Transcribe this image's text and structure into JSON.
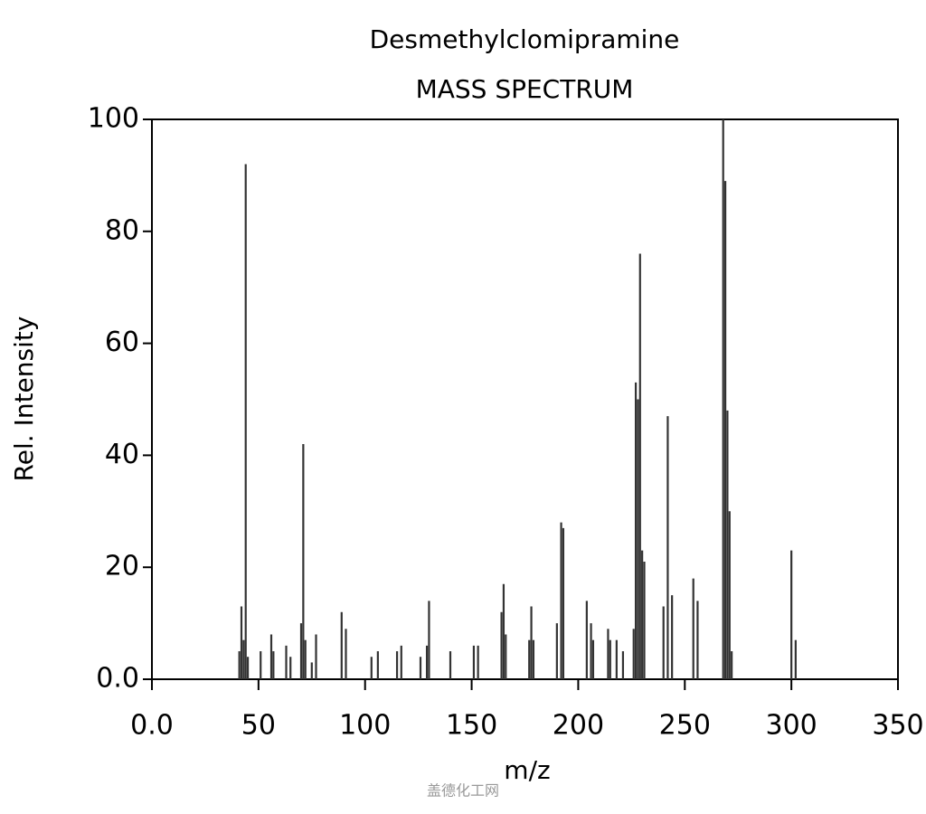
{
  "chart_data": {
    "type": "bar",
    "title": "Desmethylclomipramine",
    "subtitle": "MASS SPECTRUM",
    "x_label": "m/z",
    "y_label": "Rel. Intensity",
    "watermark": "盖德化工网",
    "color": "#333333",
    "xlim": [
      0,
      350
    ],
    "xticks": [
      {
        "value": 0,
        "label": "0.0"
      },
      50,
      100,
      150,
      200,
      250,
      300,
      350
    ],
    "ylim": [
      0,
      100
    ],
    "yticks": [
      {
        "value": 0,
        "label": "0.0"
      },
      20,
      40,
      60,
      80,
      100
    ],
    "x": [
      41,
      42,
      43,
      44,
      45,
      51,
      56,
      57,
      63,
      65,
      70,
      71,
      72,
      75,
      77,
      89,
      91,
      103,
      106,
      115,
      117,
      126,
      129,
      130,
      140,
      151,
      153,
      164,
      165,
      166,
      177,
      178,
      179,
      190,
      192,
      193,
      204,
      206,
      207,
      214,
      215,
      218,
      221,
      226,
      227,
      228,
      229,
      230,
      231,
      240,
      242,
      244,
      254,
      256,
      268,
      269,
      270,
      271,
      272,
      300,
      302
    ],
    "values": [
      5,
      13,
      7,
      92,
      4,
      5,
      8,
      5,
      6,
      4,
      10,
      42,
      7,
      3,
      8,
      12,
      9,
      4,
      5,
      5,
      6,
      4,
      6,
      14,
      5,
      6,
      6,
      12,
      17,
      8,
      7,
      13,
      7,
      10,
      28,
      27,
      14,
      10,
      7,
      9,
      7,
      7,
      5,
      9,
      53,
      50,
      76,
      23,
      21,
      13,
      47,
      15,
      18,
      14,
      100,
      89,
      48,
      30,
      5,
      23,
      7
    ]
  }
}
